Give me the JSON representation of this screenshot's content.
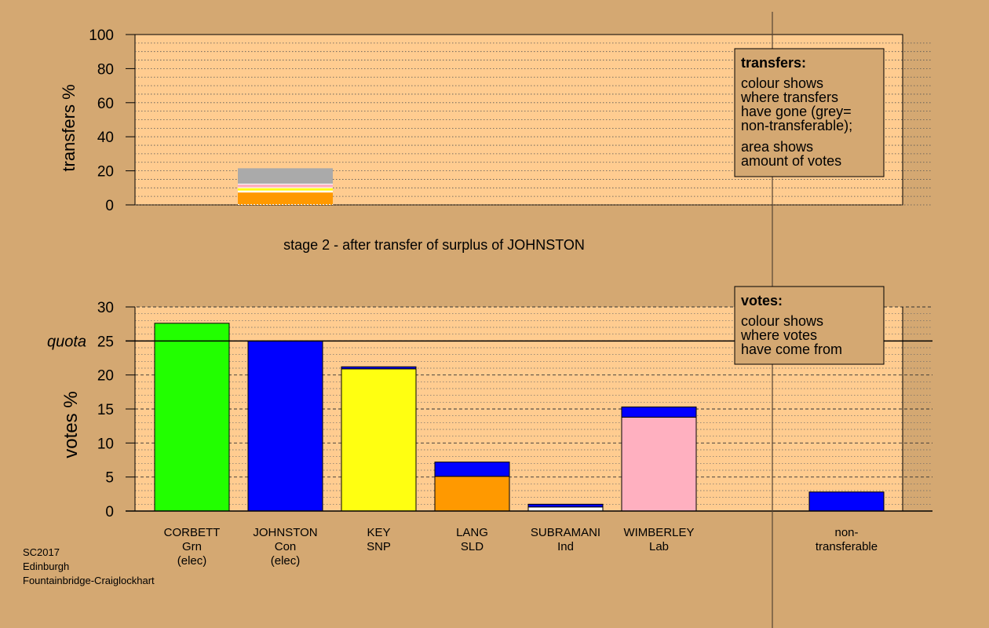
{
  "colors": {
    "background": "#D4A872",
    "panel": "#FFCC90",
    "legend_box": "#D4A872",
    "non_transferable": "#AAAAAA",
    "Grn": "#22FF00",
    "Con": "#0000FF",
    "SNP": "#FFFF11",
    "SLD": "#FF9900",
    "Ind": "#FFFFFF",
    "Lab": "#FFB0C0"
  },
  "chart_data": [
    {
      "type": "bar",
      "stacked": true,
      "title": "stage 2 - after transfer of surplus of JOHNSTON",
      "ylabel": "transfers %",
      "ylim": [
        0,
        100
      ],
      "yticks": [
        "0",
        "20",
        "40",
        "60",
        "80",
        "100"
      ],
      "segments": [
        {
          "from": 0,
          "to": 7.5,
          "source": "SLD"
        },
        {
          "from": 7.5,
          "to": 8.2,
          "source": "Ind"
        },
        {
          "from": 8.2,
          "to": 10.0,
          "source": "SNP"
        },
        {
          "from": 10.0,
          "to": 12.2,
          "source": "Lab"
        },
        {
          "from": 12.2,
          "to": 21.5,
          "source": "non_transferable"
        }
      ],
      "legend": {
        "title": "transfers:",
        "lines": [
          "colour shows",
          "where transfers",
          "have gone (grey=",
          "non-transferable);",
          "area shows",
          "amount of votes"
        ],
        "placement": "top-right"
      }
    },
    {
      "type": "bar",
      "stacked": true,
      "ylabel": "votes %",
      "ylim": [
        0,
        30
      ],
      "yticks": [
        "0",
        "5",
        "10",
        "15",
        "20",
        "25",
        "30"
      ],
      "quota": 25,
      "quota_label": "quota",
      "candidates": [
        {
          "name": "CORBETT",
          "party": "Grn",
          "status": "(elec)",
          "segments": [
            {
              "value": 27.6,
              "source": "Grn"
            }
          ]
        },
        {
          "name": "JOHNSTON",
          "party": "Con",
          "status": "(elec)",
          "segments": [
            {
              "value": 25.0,
              "source": "Con"
            }
          ]
        },
        {
          "name": "KEY",
          "party": "SNP",
          "status": "",
          "segments": [
            {
              "value": 20.9,
              "source": "SNP"
            },
            {
              "value": 0.3,
              "source": "Con"
            }
          ]
        },
        {
          "name": "LANG",
          "party": "SLD",
          "status": "",
          "segments": [
            {
              "value": 5.1,
              "source": "SLD"
            },
            {
              "value": 2.1,
              "source": "Con"
            }
          ]
        },
        {
          "name": "SUBRAMANI",
          "party": "Ind",
          "status": "",
          "segments": [
            {
              "value": 0.6,
              "source": "Ind"
            },
            {
              "value": 0.4,
              "source": "Con"
            }
          ]
        },
        {
          "name": "WIMBERLEY",
          "party": "Lab",
          "status": "",
          "segments": [
            {
              "value": 13.8,
              "source": "Lab"
            },
            {
              "value": 1.5,
              "source": "Con"
            }
          ]
        }
      ],
      "non_transferable": {
        "label1": "non-",
        "label2": "transferable",
        "segments": [
          {
            "value": 2.8,
            "source": "Con"
          }
        ]
      },
      "legend": {
        "title": "votes:",
        "lines": [
          "colour shows",
          "where votes",
          "have come from"
        ],
        "placement": "top-right"
      }
    }
  ],
  "footer": {
    "line1": "SC2017",
    "line2": "Edinburgh",
    "line3": "Fountainbridge-Craiglockhart"
  }
}
